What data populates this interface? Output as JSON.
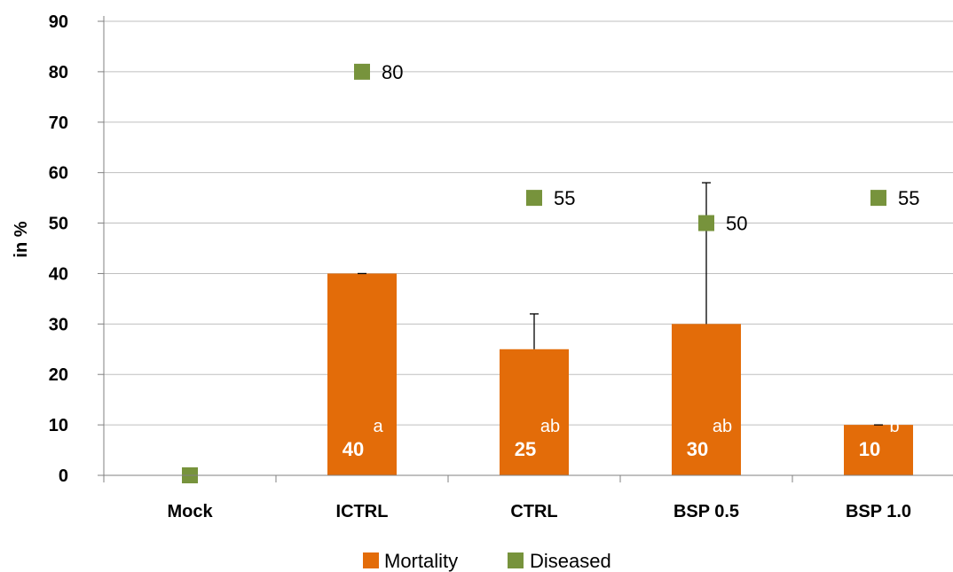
{
  "chart_data": {
    "type": "bar",
    "categories": [
      "Mock",
      "ICTRL",
      "CTRL",
      "BSP 0.5",
      "BSP 1.0"
    ],
    "ylabel": "in %",
    "ylim": [
      0,
      90
    ],
    "yticks": [
      "0",
      "10",
      "20",
      "30",
      "40",
      "50",
      "60",
      "70",
      "80",
      "90"
    ],
    "grid": true,
    "legend_position": "bottom",
    "series": [
      {
        "name": "Mortality",
        "kind": "bar",
        "color": "#E36C09",
        "values": [
          0,
          40,
          25,
          30,
          10
        ],
        "error_upper": [
          0,
          40,
          32,
          58,
          10
        ],
        "bar_labels": [
          "",
          "40",
          "25",
          "30",
          "10"
        ],
        "significance": [
          "",
          "a",
          "ab",
          "ab",
          "b"
        ]
      },
      {
        "name": "Diseased",
        "kind": "marker",
        "color": "#77933C",
        "values": [
          0,
          80,
          55,
          50,
          55
        ],
        "point_labels": [
          "",
          "80",
          "55",
          "50",
          "55"
        ]
      }
    ]
  }
}
